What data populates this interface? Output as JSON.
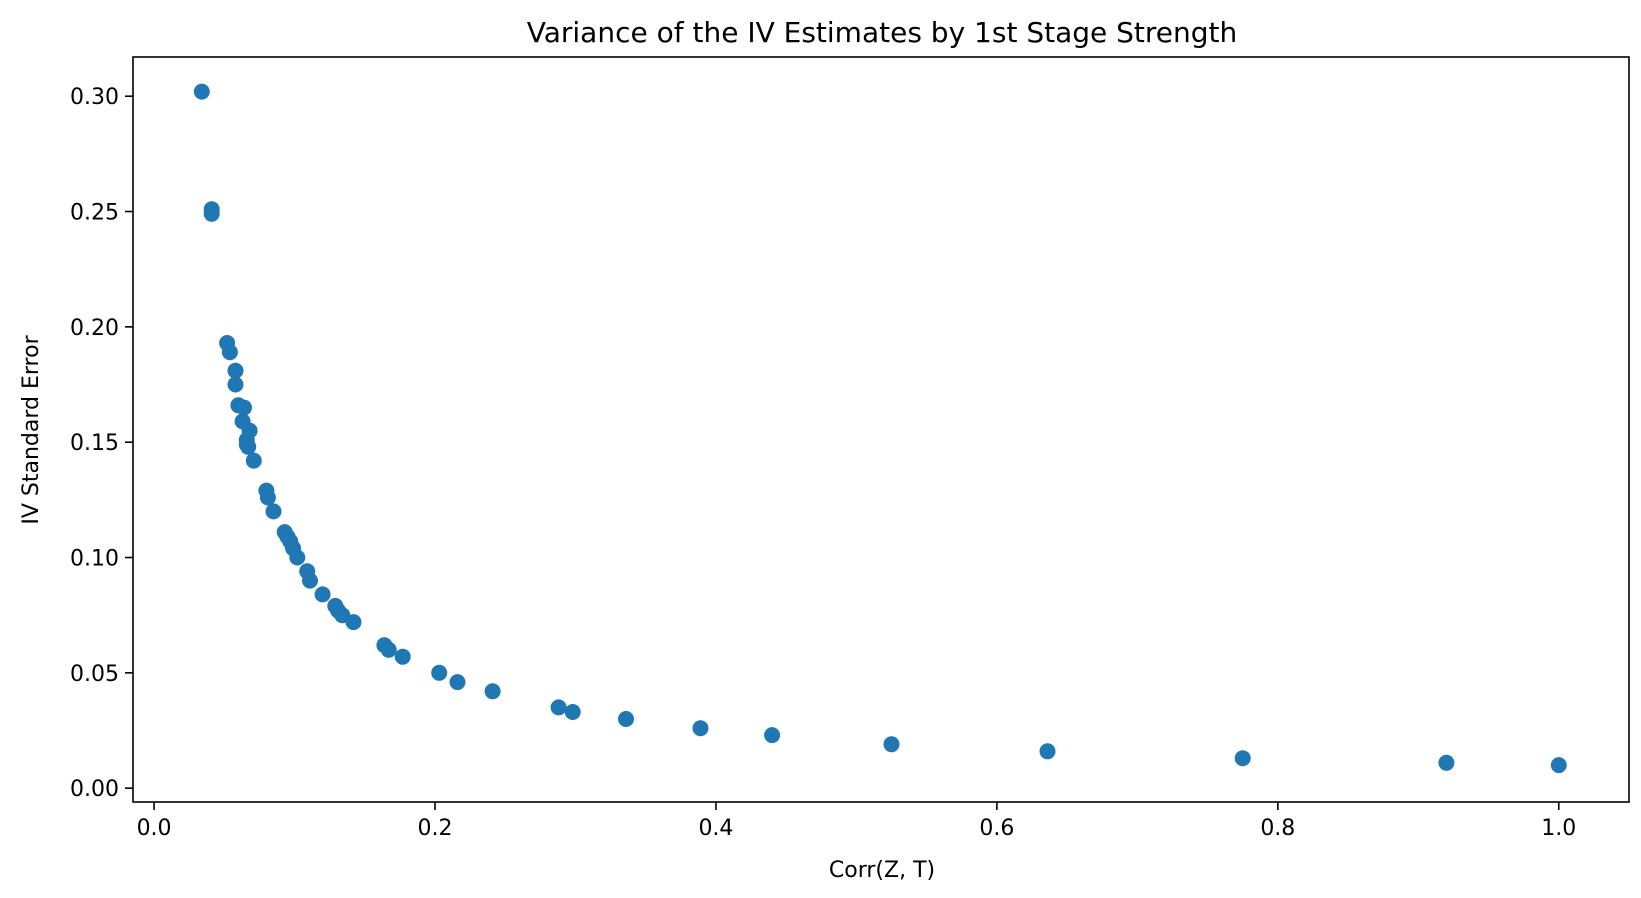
{
  "chart_data": {
    "type": "scatter",
    "title": "Variance of the IV Estimates by 1st Stage Strength",
    "xlabel": "Corr(Z, T)",
    "ylabel": "IV Standard Error",
    "xlim": [
      -0.015,
      1.05
    ],
    "ylim": [
      -0.006,
      0.317
    ],
    "xticks": [
      0.0,
      0.2,
      0.4,
      0.6,
      0.8,
      1.0
    ],
    "xtick_labels": [
      "0.0",
      "0.2",
      "0.4",
      "0.6",
      "0.8",
      "1.0"
    ],
    "yticks": [
      0.0,
      0.05,
      0.1,
      0.15,
      0.2,
      0.25,
      0.3
    ],
    "ytick_labels": [
      "0.00",
      "0.05",
      "0.10",
      "0.15",
      "0.20",
      "0.25",
      "0.30"
    ],
    "grid": false,
    "color": "#1f77b4",
    "x": [
      0.034,
      0.041,
      0.041,
      0.052,
      0.054,
      0.058,
      0.058,
      0.06,
      0.063,
      0.064,
      0.066,
      0.066,
      0.067,
      0.068,
      0.071,
      0.08,
      0.081,
      0.085,
      0.093,
      0.095,
      0.097,
      0.099,
      0.102,
      0.109,
      0.111,
      0.12,
      0.129,
      0.131,
      0.134,
      0.142,
      0.164,
      0.167,
      0.177,
      0.203,
      0.216,
      0.241,
      0.288,
      0.298,
      0.336,
      0.389,
      0.44,
      0.525,
      0.636,
      0.775,
      0.92,
      1.0
    ],
    "y": [
      0.302,
      0.251,
      0.249,
      0.193,
      0.189,
      0.181,
      0.175,
      0.166,
      0.159,
      0.165,
      0.151,
      0.149,
      0.148,
      0.155,
      0.142,
      0.129,
      0.126,
      0.12,
      0.111,
      0.109,
      0.107,
      0.104,
      0.1,
      0.094,
      0.09,
      0.084,
      0.079,
      0.077,
      0.075,
      0.072,
      0.062,
      0.06,
      0.057,
      0.05,
      0.046,
      0.042,
      0.035,
      0.033,
      0.03,
      0.026,
      0.023,
      0.019,
      0.016,
      0.013,
      0.011,
      0.01
    ]
  }
}
